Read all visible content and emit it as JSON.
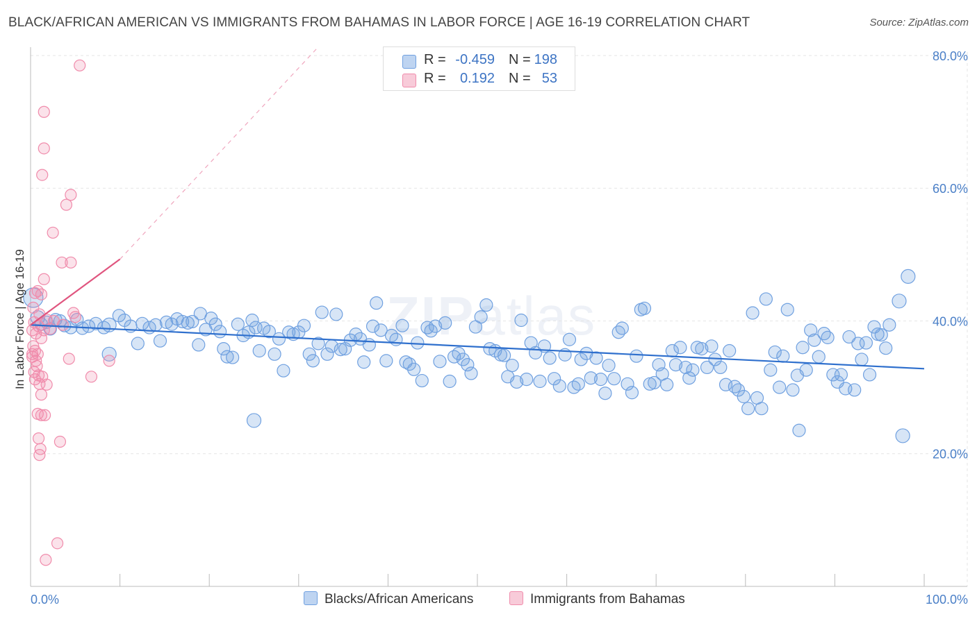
{
  "title": "BLACK/AFRICAN AMERICAN VS IMMIGRANTS FROM BAHAMAS IN LABOR FORCE | AGE 16-19 CORRELATION CHART",
  "source": "Source: ZipAtlas.com",
  "watermark": {
    "bold": "ZIP",
    "light": "atlas"
  },
  "colors": {
    "blue": "#6fa0e0",
    "blue_line": "#2e6fcd",
    "pink": "#f08bab",
    "pink_line": "#e0557f",
    "grid": "#e5e5e5",
    "tick_text": "#4a7fc7"
  },
  "legend": {
    "rows": [
      {
        "r_label": "R =",
        "r_value": "-0.459",
        "n_label": "N =",
        "n_value": "198"
      },
      {
        "r_label": "R =",
        "r_value": "0.192",
        "n_label": "N =",
        "n_value": "53"
      }
    ]
  },
  "chart_data": {
    "type": "scatter",
    "title": "BLACK/AFRICAN AMERICAN VS IMMIGRANTS FROM BAHAMAS IN LABOR FORCE | AGE 16-19 CORRELATION CHART",
    "xlabel": "",
    "ylabel": "In Labor Force | Age 16-19",
    "xlim": [
      0,
      100
    ],
    "ylim": [
      0,
      84
    ],
    "x_tick_labels": [
      "0.0%",
      "100.0%"
    ],
    "y_ticks": [
      20,
      40,
      60,
      80
    ],
    "y_tick_labels": [
      "20.0%",
      "40.0%",
      "60.0%",
      "80.0%"
    ],
    "grid": true,
    "legend_position": "top-center",
    "series": [
      {
        "name": "Blacks/African Americans",
        "color": "#6fa0e0",
        "trend": {
          "x": [
            0,
            100
          ],
          "y": [
            39.4,
            32.8
          ]
        },
        "points": [
          [
            0.3,
            43.5
          ],
          [
            0.8,
            40.5
          ],
          [
            1.2,
            39.5
          ],
          [
            1.8,
            39.8
          ],
          [
            2.2,
            38.8
          ],
          [
            2.8,
            40.2
          ],
          [
            3.3,
            40.0
          ],
          [
            3.8,
            39.3
          ],
          [
            4.5,
            39.0
          ],
          [
            5.2,
            40.2
          ],
          [
            5.8,
            38.9
          ],
          [
            6.5,
            39.2
          ],
          [
            7.3,
            39.6
          ],
          [
            8.2,
            39.0
          ],
          [
            8.8,
            39.4
          ],
          [
            9.9,
            40.8
          ],
          [
            10.5,
            40.1
          ],
          [
            11.2,
            39.2
          ],
          [
            12.0,
            36.6
          ],
          [
            12.5,
            39.6
          ],
          [
            13.3,
            39.0
          ],
          [
            14.0,
            39.4
          ],
          [
            14.5,
            37.0
          ],
          [
            15.2,
            39.8
          ],
          [
            15.8,
            39.5
          ],
          [
            16.4,
            40.3
          ],
          [
            17.0,
            39.9
          ],
          [
            17.6,
            39.7
          ],
          [
            18.1,
            39.9
          ],
          [
            18.8,
            36.4
          ],
          [
            19.0,
            41.1
          ],
          [
            19.6,
            38.7
          ],
          [
            20.2,
            40.4
          ],
          [
            20.7,
            39.5
          ],
          [
            21.2,
            38.4
          ],
          [
            21.6,
            35.8
          ],
          [
            22.0,
            34.6
          ],
          [
            22.6,
            34.5
          ],
          [
            23.2,
            39.5
          ],
          [
            23.8,
            37.8
          ],
          [
            24.4,
            38.3
          ],
          [
            24.8,
            40.1
          ],
          [
            25.2,
            39.0
          ],
          [
            25.6,
            35.5
          ],
          [
            26.1,
            38.9
          ],
          [
            26.7,
            38.4
          ],
          [
            27.3,
            35.0
          ],
          [
            27.8,
            37.3
          ],
          [
            28.3,
            32.5
          ],
          [
            28.9,
            38.3
          ],
          [
            29.4,
            38.0
          ],
          [
            30.0,
            38.3
          ],
          [
            30.6,
            39.3
          ],
          [
            31.2,
            35.0
          ],
          [
            31.6,
            34.0
          ],
          [
            32.2,
            36.6
          ],
          [
            32.6,
            41.3
          ],
          [
            33.2,
            35.0
          ],
          [
            33.7,
            36.2
          ],
          [
            34.2,
            41.0
          ],
          [
            34.7,
            35.7
          ],
          [
            35.2,
            35.8
          ],
          [
            35.8,
            37.1
          ],
          [
            36.4,
            38.0
          ],
          [
            36.9,
            37.3
          ],
          [
            37.3,
            33.8
          ],
          [
            37.9,
            36.4
          ],
          [
            38.3,
            39.2
          ],
          [
            38.7,
            42.7
          ],
          [
            39.2,
            38.6
          ],
          [
            39.8,
            34.0
          ],
          [
            40.4,
            37.8
          ],
          [
            40.9,
            37.2
          ],
          [
            41.6,
            39.3
          ],
          [
            42.0,
            33.8
          ],
          [
            42.4,
            33.5
          ],
          [
            42.9,
            32.7
          ],
          [
            43.3,
            36.7
          ],
          [
            43.8,
            31.0
          ],
          [
            44.4,
            39.0
          ],
          [
            44.8,
            38.5
          ],
          [
            45.3,
            39.2
          ],
          [
            45.8,
            33.9
          ],
          [
            46.4,
            39.7
          ],
          [
            46.9,
            30.9
          ],
          [
            47.4,
            34.6
          ],
          [
            47.9,
            35.1
          ],
          [
            48.4,
            34.2
          ],
          [
            48.9,
            33.4
          ],
          [
            49.3,
            32.1
          ],
          [
            49.8,
            39.1
          ],
          [
            50.4,
            40.6
          ],
          [
            51.0,
            42.4
          ],
          [
            51.4,
            35.8
          ],
          [
            52.0,
            35.5
          ],
          [
            52.6,
            34.9
          ],
          [
            53.0,
            34.8
          ],
          [
            53.4,
            31.6
          ],
          [
            53.9,
            33.3
          ],
          [
            54.4,
            30.8
          ],
          [
            54.9,
            40.1
          ],
          [
            55.5,
            31.2
          ],
          [
            56.0,
            36.7
          ],
          [
            56.5,
            35.2
          ],
          [
            57.0,
            30.9
          ],
          [
            57.5,
            36.2
          ],
          [
            58.1,
            34.4
          ],
          [
            58.6,
            31.3
          ],
          [
            59.2,
            30.2
          ],
          [
            59.8,
            34.9
          ],
          [
            60.3,
            37.2
          ],
          [
            60.8,
            30.0
          ],
          [
            61.3,
            30.5
          ],
          [
            61.6,
            34.2
          ],
          [
            62.2,
            35.1
          ],
          [
            62.7,
            31.4
          ],
          [
            63.3,
            34.4
          ],
          [
            63.8,
            31.2
          ],
          [
            64.3,
            29.1
          ],
          [
            64.7,
            33.3
          ],
          [
            65.3,
            31.3
          ],
          [
            65.8,
            38.3
          ],
          [
            66.2,
            38.9
          ],
          [
            66.8,
            30.5
          ],
          [
            67.3,
            29.2
          ],
          [
            67.8,
            34.7
          ],
          [
            68.3,
            41.7
          ],
          [
            68.7,
            41.9
          ],
          [
            69.3,
            30.5
          ],
          [
            69.8,
            30.7
          ],
          [
            70.3,
            33.4
          ],
          [
            70.7,
            32.0
          ],
          [
            71.2,
            30.4
          ],
          [
            71.8,
            35.5
          ],
          [
            72.2,
            33.4
          ],
          [
            72.7,
            36.0
          ],
          [
            73.3,
            33.0
          ],
          [
            73.7,
            31.4
          ],
          [
            74.1,
            32.6
          ],
          [
            74.6,
            36.0
          ],
          [
            75.1,
            35.8
          ],
          [
            75.7,
            33.0
          ],
          [
            76.2,
            36.2
          ],
          [
            76.6,
            34.2
          ],
          [
            77.2,
            33.0
          ],
          [
            77.8,
            30.4
          ],
          [
            78.2,
            35.5
          ],
          [
            78.8,
            30.1
          ],
          [
            79.2,
            29.6
          ],
          [
            79.8,
            28.6
          ],
          [
            80.3,
            26.8
          ],
          [
            80.8,
            41.2
          ],
          [
            81.3,
            28.4
          ],
          [
            81.8,
            26.8
          ],
          [
            82.3,
            43.3
          ],
          [
            82.8,
            32.6
          ],
          [
            83.3,
            35.3
          ],
          [
            83.8,
            30.0
          ],
          [
            84.2,
            34.7
          ],
          [
            84.7,
            41.7
          ],
          [
            85.3,
            29.6
          ],
          [
            85.8,
            31.8
          ],
          [
            86.4,
            36.0
          ],
          [
            86.8,
            32.6
          ],
          [
            87.3,
            38.6
          ],
          [
            87.7,
            37.1
          ],
          [
            88.2,
            34.6
          ],
          [
            88.8,
            38.1
          ],
          [
            89.2,
            37.5
          ],
          [
            89.8,
            31.9
          ],
          [
            90.3,
            30.8
          ],
          [
            90.7,
            31.9
          ],
          [
            91.2,
            29.8
          ],
          [
            91.6,
            37.6
          ],
          [
            92.2,
            29.6
          ],
          [
            92.6,
            36.6
          ],
          [
            93.0,
            34.2
          ],
          [
            93.5,
            36.7
          ],
          [
            93.9,
            31.9
          ],
          [
            94.4,
            39.1
          ],
          [
            94.8,
            38.0
          ],
          [
            95.2,
            37.9
          ],
          [
            95.7,
            35.9
          ],
          [
            96.1,
            39.4
          ],
          [
            97.2,
            43.0
          ],
          [
            97.6,
            22.7
          ],
          [
            98.2,
            46.7
          ],
          [
            86.0,
            23.5
          ],
          [
            25.0,
            25.0
          ],
          [
            8.8,
            35.0
          ]
        ]
      },
      {
        "name": "Immigrants from Bahamas",
        "color": "#f08bab",
        "trend": {
          "x": [
            0,
            10
          ],
          "y": [
            39.4,
            49.3
          ]
        },
        "trend_extended": {
          "x": [
            10,
            32
          ],
          "y": [
            49.3,
            81.0
          ]
        },
        "points": [
          [
            5.5,
            78.5
          ],
          [
            1.5,
            71.5
          ],
          [
            1.5,
            66.0
          ],
          [
            1.3,
            62.0
          ],
          [
            4.5,
            59.0
          ],
          [
            4.0,
            57.5
          ],
          [
            2.5,
            53.3
          ],
          [
            3.5,
            48.8
          ],
          [
            4.5,
            48.8
          ],
          [
            1.5,
            46.3
          ],
          [
            0.5,
            44.2
          ],
          [
            0.8,
            44.5
          ],
          [
            1.2,
            44.0
          ],
          [
            0.3,
            42.0
          ],
          [
            1.0,
            41.0
          ],
          [
            1.8,
            40.2
          ],
          [
            2.6,
            40.0
          ],
          [
            4.8,
            41.2
          ],
          [
            5.0,
            40.6
          ],
          [
            0.4,
            39.8
          ],
          [
            0.9,
            39.2
          ],
          [
            1.5,
            38.6
          ],
          [
            0.2,
            38.6
          ],
          [
            0.6,
            38.1
          ],
          [
            1.2,
            37.4
          ],
          [
            0.3,
            36.2
          ],
          [
            0.5,
            35.5
          ],
          [
            0.2,
            35.0
          ],
          [
            0.8,
            35.0
          ],
          [
            0.2,
            34.6
          ],
          [
            0.6,
            34.0
          ],
          [
            4.3,
            34.3
          ],
          [
            8.8,
            34.0
          ],
          [
            0.4,
            32.3
          ],
          [
            0.9,
            31.8
          ],
          [
            1.3,
            31.6
          ],
          [
            0.5,
            31.2
          ],
          [
            1.0,
            30.5
          ],
          [
            1.8,
            30.4
          ],
          [
            6.8,
            31.6
          ],
          [
            1.2,
            28.9
          ],
          [
            0.8,
            26.0
          ],
          [
            1.2,
            25.8
          ],
          [
            1.6,
            25.8
          ],
          [
            0.9,
            22.3
          ],
          [
            3.3,
            21.8
          ],
          [
            1.1,
            20.7
          ],
          [
            1.0,
            19.8
          ],
          [
            3.0,
            6.5
          ],
          [
            1.7,
            4.0
          ],
          [
            3.6,
            39.4
          ],
          [
            2.2,
            38.8
          ],
          [
            0.7,
            33.2
          ]
        ]
      }
    ]
  },
  "bottom_legend": [
    {
      "label": "Blacks/African Americans"
    },
    {
      "label": "Immigrants from Bahamas"
    }
  ]
}
